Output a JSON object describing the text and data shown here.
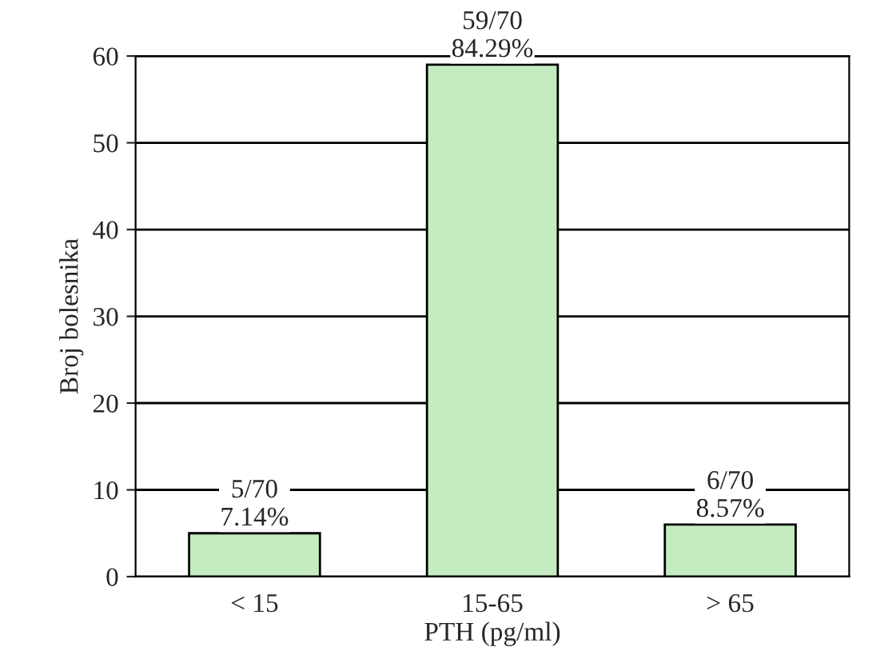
{
  "chart_data": {
    "type": "bar",
    "xlabel": "PTH (pg/ml)",
    "ylabel": "Broj bolesnika",
    "categories": [
      "< 15",
      "15-65",
      "> 65"
    ],
    "values": [
      5,
      59,
      6
    ],
    "color": "#c4ecc0",
    "value_labels": [
      "5/70\n7.14%",
      "59/70\n84.29%",
      "6/70\n8.57%"
    ],
    "ylim": [
      0,
      60
    ],
    "yticks": [
      0,
      10,
      20,
      30,
      40,
      50,
      60
    ],
    "grid": "y",
    "legend": false
  }
}
